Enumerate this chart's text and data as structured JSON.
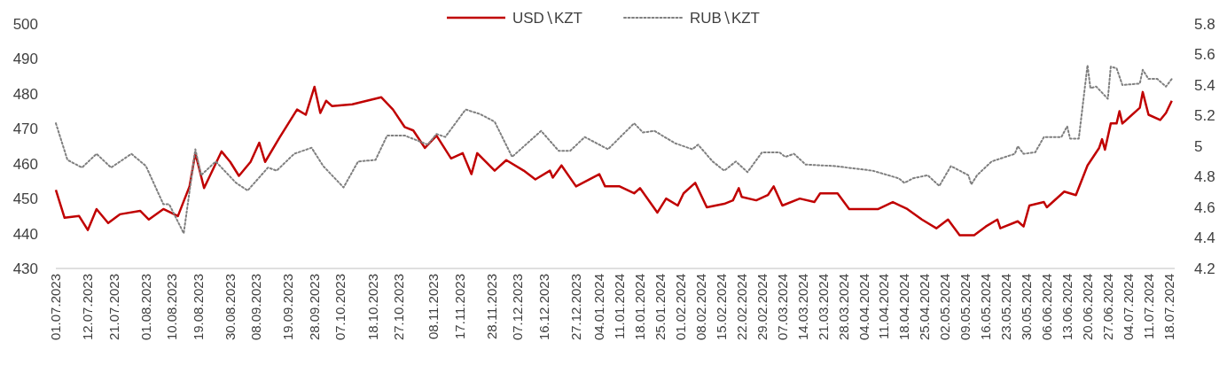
{
  "chart_data": {
    "type": "line",
    "legend": "top",
    "grid": false,
    "xlim": [
      "2023-07-01",
      "2024-07-20"
    ],
    "xticks": [
      {
        "value": "2023-07-01",
        "label": "01.07.2023"
      },
      {
        "value": "2023-07-12",
        "label": "12.07.2023"
      },
      {
        "value": "2023-07-21",
        "label": "21.07.2023"
      },
      {
        "value": "2023-08-01",
        "label": "01.08.2023"
      },
      {
        "value": "2023-08-10",
        "label": "10.08.2023"
      },
      {
        "value": "2023-08-19",
        "label": "19.08.2023"
      },
      {
        "value": "2023-08-30",
        "label": "30.08.2023"
      },
      {
        "value": "2023-09-08",
        "label": "08.09.2023"
      },
      {
        "value": "2023-09-19",
        "label": "19.09.2023"
      },
      {
        "value": "2023-09-28",
        "label": "28.09.2023"
      },
      {
        "value": "2023-10-07",
        "label": "07.10.2023"
      },
      {
        "value": "2023-10-18",
        "label": "18.10.2023"
      },
      {
        "value": "2023-10-27",
        "label": "27.10.2023"
      },
      {
        "value": "2023-11-08",
        "label": "08.11.2023"
      },
      {
        "value": "2023-11-17",
        "label": "17.11.2023"
      },
      {
        "value": "2023-11-28",
        "label": "28.11.2023"
      },
      {
        "value": "2023-12-07",
        "label": "07.12.2023"
      },
      {
        "value": "2023-12-16",
        "label": "16.12.2023"
      },
      {
        "value": "2023-12-27",
        "label": "27.12.2023"
      },
      {
        "value": "2024-01-04",
        "label": "04.01.2024"
      },
      {
        "value": "2024-01-11",
        "label": "11.01.2024"
      },
      {
        "value": "2024-01-18",
        "label": "18.01.2024"
      },
      {
        "value": "2024-01-25",
        "label": "25.01.2024"
      },
      {
        "value": "2024-02-01",
        "label": "01.02.2024"
      },
      {
        "value": "2024-02-08",
        "label": "08.02.2024"
      },
      {
        "value": "2024-02-15",
        "label": "15.02.2024"
      },
      {
        "value": "2024-02-22",
        "label": "22.02.2024"
      },
      {
        "value": "2024-02-29",
        "label": "29.02.2024"
      },
      {
        "value": "2024-03-07",
        "label": "07.03.2024"
      },
      {
        "value": "2024-03-14",
        "label": "14.03.2024"
      },
      {
        "value": "2024-03-21",
        "label": "21.03.2024"
      },
      {
        "value": "2024-03-28",
        "label": "28.03.2024"
      },
      {
        "value": "2024-04-04",
        "label": "04.04.2024"
      },
      {
        "value": "2024-04-11",
        "label": "11.04.2024"
      },
      {
        "value": "2024-04-18",
        "label": "18.04.2024"
      },
      {
        "value": "2024-04-25",
        "label": "25.04.2024"
      },
      {
        "value": "2024-05-02",
        "label": "02.05.2024"
      },
      {
        "value": "2024-05-09",
        "label": "09.05.2024"
      },
      {
        "value": "2024-05-16",
        "label": "16.05.2024"
      },
      {
        "value": "2024-05-23",
        "label": "23.05.2024"
      },
      {
        "value": "2024-05-30",
        "label": "30.05.2024"
      },
      {
        "value": "2024-06-06",
        "label": "06.06.2024"
      },
      {
        "value": "2024-06-13",
        "label": "13.06.2024"
      },
      {
        "value": "2024-06-20",
        "label": "20.06.2024"
      },
      {
        "value": "2024-06-27",
        "label": "27.06.2024"
      },
      {
        "value": "2024-07-04",
        "label": "04.07.2024"
      },
      {
        "value": "2024-07-11",
        "label": "11.07.2024"
      },
      {
        "value": "2024-07-18",
        "label": "18.07.2024"
      }
    ],
    "ylim": [
      430,
      500
    ],
    "yticks": [
      430,
      440,
      450,
      460,
      470,
      480,
      490,
      500
    ],
    "y2lim": [
      4.2,
      5.8
    ],
    "y2ticks": [
      4.2,
      4.4,
      4.6,
      4.8,
      5,
      5.2,
      5.4,
      5.6,
      5.8
    ],
    "series": [
      {
        "name": "USD∖KZT",
        "color": "#c00000",
        "line_style": "solid",
        "x": [
          "2023-07-01",
          "2023-07-04",
          "2023-07-09",
          "2023-07-12",
          "2023-07-15",
          "2023-07-19",
          "2023-07-23",
          "2023-07-30",
          "2023-08-02",
          "2023-08-07",
          "2023-08-12",
          "2023-08-16",
          "2023-08-18",
          "2023-08-21",
          "2023-08-27",
          "2023-08-30",
          "2023-09-02",
          "2023-09-06",
          "2023-09-09",
          "2023-09-11",
          "2023-09-16",
          "2023-09-22",
          "2023-09-25",
          "2023-09-28",
          "2023-09-30",
          "2023-10-02",
          "2023-10-04",
          "2023-10-11",
          "2023-10-21",
          "2023-10-25",
          "2023-10-29",
          "2023-11-01",
          "2023-11-05",
          "2023-11-09",
          "2023-11-14",
          "2023-11-18",
          "2023-11-21",
          "2023-11-23",
          "2023-11-29",
          "2023-12-03",
          "2023-12-09",
          "2023-12-13",
          "2023-12-18",
          "2023-12-19",
          "2023-12-22",
          "2023-12-27",
          "2024-01-04",
          "2024-01-06",
          "2024-01-11",
          "2024-01-16",
          "2024-01-18",
          "2024-01-24",
          "2024-01-27",
          "2024-01-31",
          "2024-02-02",
          "2024-02-06",
          "2024-02-10",
          "2024-02-16",
          "2024-02-19",
          "2024-02-21",
          "2024-02-22",
          "2024-02-27",
          "2024-03-02",
          "2024-03-04",
          "2024-03-07",
          "2024-03-13",
          "2024-03-18",
          "2024-03-20",
          "2024-03-26",
          "2024-03-30",
          "2024-04-09",
          "2024-04-14",
          "2024-04-19",
          "2024-04-24",
          "2024-04-29",
          "2024-05-03",
          "2024-05-07",
          "2024-05-12",
          "2024-05-16",
          "2024-05-20",
          "2024-05-21",
          "2024-05-27",
          "2024-05-29",
          "2024-05-31",
          "2024-06-05",
          "2024-06-06",
          "2024-06-12",
          "2024-06-16",
          "2024-06-20",
          "2024-06-24",
          "2024-06-25",
          "2024-06-26",
          "2024-06-28",
          "2024-06-30",
          "2024-07-01",
          "2024-07-02",
          "2024-07-08",
          "2024-07-09",
          "2024-07-11",
          "2024-07-15",
          "2024-07-17",
          "2024-07-19"
        ],
        "values": [
          452.5,
          444.5,
          445,
          441,
          447,
          443,
          445.5,
          446.5,
          444,
          447,
          445,
          453.5,
          463,
          453,
          463.5,
          460.5,
          456.5,
          460.5,
          466,
          460.5,
          467.5,
          475.5,
          474,
          482,
          474.5,
          478,
          476.5,
          477,
          479,
          475.5,
          470.5,
          469.5,
          464.5,
          468,
          461.5,
          463,
          457,
          463,
          458,
          461,
          458,
          455.5,
          458,
          456,
          459.5,
          453.5,
          457,
          453.5,
          453.5,
          451.5,
          453,
          446,
          450,
          448,
          451.5,
          454.5,
          447.5,
          448.5,
          449.5,
          453,
          450.5,
          449.5,
          451,
          453.5,
          448,
          450,
          449,
          451.5,
          451.5,
          447,
          447,
          449,
          447,
          444,
          441.5,
          444,
          439.5,
          439.5,
          442,
          444,
          441.5,
          443.5,
          442,
          448,
          449,
          447.5,
          452,
          451,
          459.5,
          464.5,
          467,
          464,
          471.5,
          471.5,
          475,
          471.5,
          476,
          480.5,
          474,
          472.5,
          474.5,
          478
        ]
      },
      {
        "name": "RUB∖KZT",
        "color": "#7f7f7f",
        "line_style": "dotted",
        "axis": "y2",
        "x": [
          "2023-07-01",
          "2023-07-05",
          "2023-07-10",
          "2023-07-15",
          "2023-07-20",
          "2023-07-27",
          "2023-08-01",
          "2023-08-07",
          "2023-08-09",
          "2023-08-14",
          "2023-08-18",
          "2023-08-20",
          "2023-08-25",
          "2023-09-01",
          "2023-09-05",
          "2023-09-12",
          "2023-09-15",
          "2023-09-21",
          "2023-09-27",
          "2023-10-01",
          "2023-10-08",
          "2023-10-13",
          "2023-10-19",
          "2023-10-23",
          "2023-10-29",
          "2023-11-06",
          "2023-11-09",
          "2023-11-12",
          "2023-11-19",
          "2023-11-24",
          "2023-11-29",
          "2023-12-05",
          "2023-12-15",
          "2023-12-21",
          "2023-12-25",
          "2023-12-30",
          "2024-01-07",
          "2024-01-16",
          "2024-01-19",
          "2024-01-23",
          "2024-01-30",
          "2024-02-05",
          "2024-02-07",
          "2024-02-12",
          "2024-02-16",
          "2024-02-20",
          "2024-02-24",
          "2024-02-29",
          "2024-03-06",
          "2024-03-08",
          "2024-03-11",
          "2024-03-15",
          "2024-03-25",
          "2024-04-07",
          "2024-04-16",
          "2024-04-18",
          "2024-04-21",
          "2024-04-26",
          "2024-04-30",
          "2024-05-04",
          "2024-05-10",
          "2024-05-11",
          "2024-05-13",
          "2024-05-18",
          "2024-05-26",
          "2024-05-27",
          "2024-05-29",
          "2024-06-02",
          "2024-06-05",
          "2024-06-11",
          "2024-06-13",
          "2024-06-14",
          "2024-06-17",
          "2024-06-20",
          "2024-06-21",
          "2024-06-23",
          "2024-06-27",
          "2024-06-28",
          "2024-06-30",
          "2024-07-02",
          "2024-07-08",
          "2024-07-09",
          "2024-07-11",
          "2024-07-14",
          "2024-07-17",
          "2024-07-19"
        ],
        "values": [
          5.15,
          4.91,
          4.86,
          4.95,
          4.86,
          4.95,
          4.87,
          4.62,
          4.62,
          4.43,
          4.98,
          4.81,
          4.9,
          4.76,
          4.71,
          4.86,
          4.84,
          4.95,
          4.99,
          4.87,
          4.73,
          4.9,
          4.91,
          5.07,
          5.07,
          5.01,
          5.08,
          5.06,
          5.24,
          5.21,
          5.16,
          4.93,
          5.1,
          4.97,
          4.97,
          5.06,
          4.98,
          5.15,
          5.09,
          5.1,
          5.02,
          4.98,
          5.01,
          4.9,
          4.84,
          4.9,
          4.83,
          4.96,
          4.96,
          4.93,
          4.95,
          4.88,
          4.87,
          4.84,
          4.79,
          4.76,
          4.79,
          4.81,
          4.74,
          4.87,
          4.81,
          4.75,
          4.81,
          4.9,
          4.95,
          5,
          4.95,
          4.96,
          5.06,
          5.06,
          5.13,
          5.05,
          5.05,
          5.53,
          5.38,
          5.39,
          5.31,
          5.52,
          5.51,
          5.4,
          5.41,
          5.5,
          5.44,
          5.44,
          5.39,
          5.44
        ]
      }
    ]
  }
}
